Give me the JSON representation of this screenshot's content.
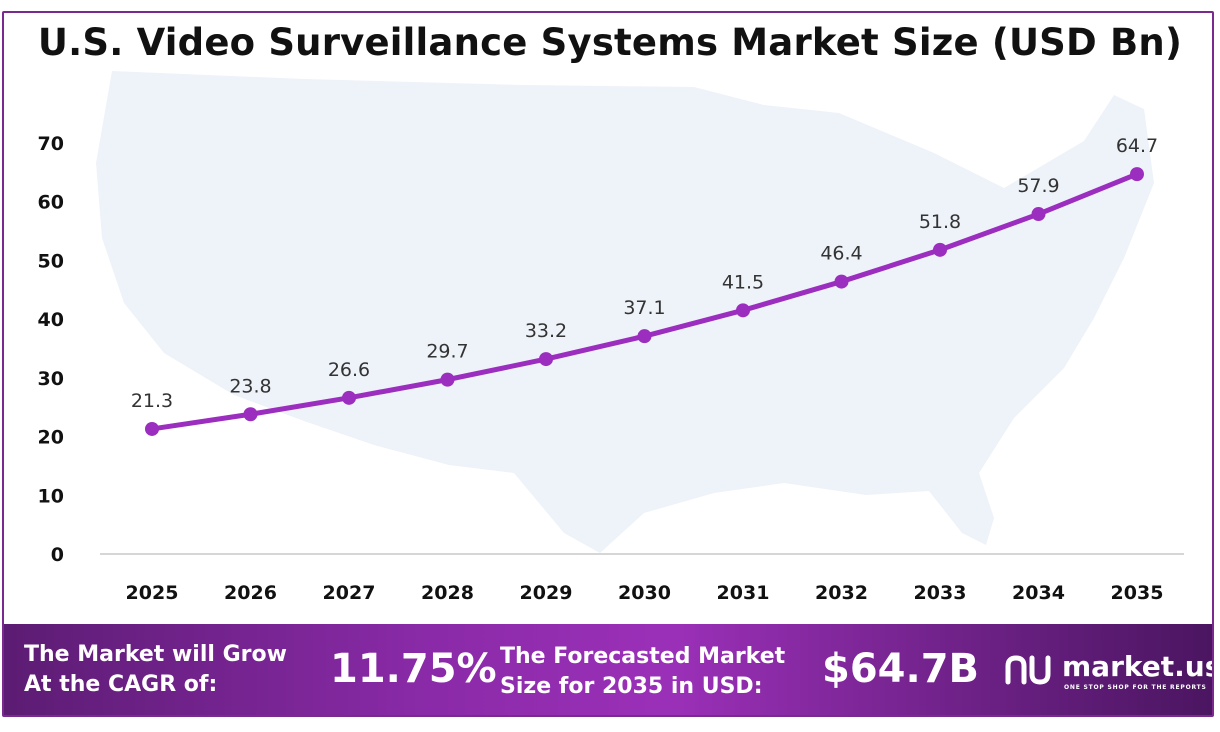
{
  "chart_data": {
    "type": "line",
    "title": "U.S. Video Surveillance Systems Market Size (USD Bn)",
    "categories": [
      "2025",
      "2026",
      "2027",
      "2028",
      "2029",
      "2030",
      "2031",
      "2032",
      "2033",
      "2034",
      "2035"
    ],
    "series": [
      {
        "values": [
          21.3,
          23.8,
          26.6,
          29.7,
          33.2,
          37.1,
          41.5,
          46.4,
          51.8,
          57.9,
          64.7
        ]
      }
    ],
    "yticks": [
      0,
      10,
      20,
      30,
      40,
      50,
      60,
      70
    ],
    "ylim": [
      0,
      70
    ],
    "xlabel": "",
    "ylabel": "",
    "grid": false,
    "line_color": "#9b2dbf",
    "background_graphic": "us-map"
  },
  "footer": {
    "cagr_line1": "The Market will Grow",
    "cagr_line2": "At the CAGR of:",
    "cagr_value": "11.75%",
    "forecast_line1": "The Forecasted Market",
    "forecast_line2": "Size for 2035 in USD:",
    "forecast_value": "$64.7B",
    "brand_name": "market.us",
    "brand_tagline": "ONE STOP SHOP FOR THE REPORTS"
  }
}
